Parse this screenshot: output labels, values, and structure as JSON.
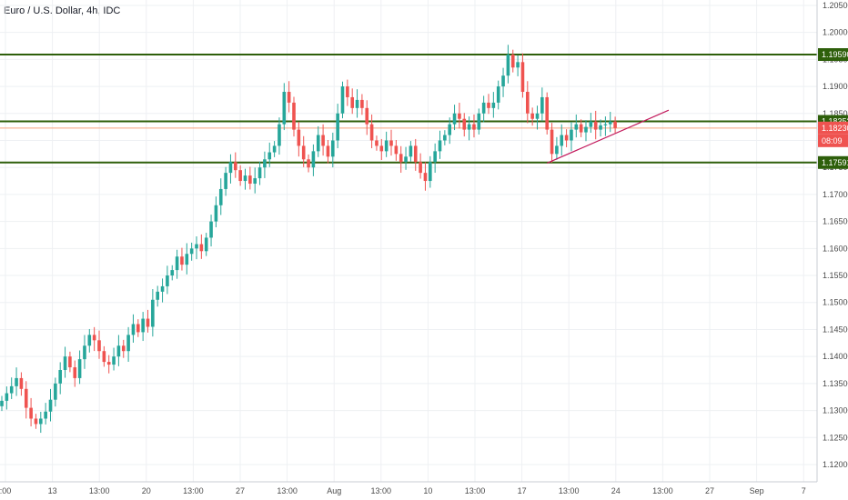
{
  "header": {
    "title": "Euro / U.S. Dollar, 4h, IDC"
  },
  "colors": {
    "up": "#26a69a",
    "down": "#ef5350",
    "level_line": "#2e5f0b",
    "level_badge": "#2e5f0b",
    "current_badge": "#ef5350",
    "current_line": "#f5a37f",
    "trendline": "#c2185b",
    "grid": "#eef0f3"
  },
  "chart_data": {
    "type": "candlestick",
    "title": "Euro / U.S. Dollar, 4h, IDC",
    "ylim": [
      1.1168,
      1.206
    ],
    "grid": true,
    "price_ticks": [
      "1.12000",
      "1.12500",
      "1.13000",
      "1.13500",
      "1.14000",
      "1.14500",
      "1.15000",
      "1.15500",
      "1.16000",
      "1.16500",
      "1.17000",
      "1.17500",
      "1.18000",
      "1.18500",
      "1.19000",
      "1.19500",
      "1.20000",
      "1.20500"
    ],
    "time_ticks": [
      ":00",
      "13",
      "13:00",
      "20",
      "13:00",
      "27",
      "13:00",
      "Aug",
      "13:00",
      "10",
      "13:00",
      "17",
      "13:00",
      "24",
      "13:00",
      "27",
      "Sep",
      "7"
    ],
    "horizontal_levels": [
      {
        "label": "1.19590",
        "value": 1.1959
      },
      {
        "label": "1.18353",
        "value": 1.18353
      },
      {
        "label": "1.17591",
        "value": 1.17591
      }
    ],
    "current_price": {
      "label": "1.18230",
      "value": 1.1823,
      "countdown": "08:09"
    },
    "trendline": {
      "from": {
        "index": 112,
        "value": 1.1758
      },
      "to": {
        "index": 137,
        "value": 1.1856
      }
    },
    "closes": [
      1.1318,
      1.1332,
      1.1345,
      1.136,
      1.134,
      1.1305,
      1.1285,
      1.1275,
      1.1285,
      1.1298,
      1.132,
      1.135,
      1.1375,
      1.14,
      1.138,
      1.136,
      1.1395,
      1.142,
      1.144,
      1.143,
      1.141,
      1.139,
      1.1385,
      1.14,
      1.142,
      1.141,
      1.144,
      1.146,
      1.1445,
      1.147,
      1.1455,
      1.1505,
      1.152,
      1.153,
      1.155,
      1.156,
      1.1585,
      1.157,
      1.159,
      1.16,
      1.1608,
      1.1595,
      1.162,
      1.165,
      1.168,
      1.171,
      1.174,
      1.176,
      1.1745,
      1.1725,
      1.1735,
      1.172,
      1.173,
      1.175,
      1.1765,
      1.1778,
      1.179,
      1.183,
      1.189,
      1.187,
      1.182,
      1.179,
      1.1765,
      1.175,
      1.178,
      1.181,
      1.179,
      1.177,
      1.18,
      1.185,
      1.19,
      1.188,
      1.186,
      1.1875,
      1.186,
      1.183,
      1.18,
      1.179,
      1.178,
      1.18,
      1.179,
      1.1775,
      1.176,
      1.177,
      1.179,
      1.176,
      1.174,
      1.1725,
      1.176,
      1.178,
      1.18,
      1.181,
      1.183,
      1.185,
      1.184,
      1.182,
      1.183,
      1.182,
      1.185,
      1.187,
      1.186,
      1.187,
      1.19,
      1.192,
      1.1959,
      1.1935,
      1.1945,
      1.189,
      1.185,
      1.184,
      1.185,
      1.188,
      1.182,
      1.1775,
      1.179,
      1.181,
      1.18,
      1.182,
      1.183,
      1.1815,
      1.1825,
      1.1835,
      1.182,
      1.1828,
      1.183,
      1.1835,
      1.1823
    ]
  }
}
